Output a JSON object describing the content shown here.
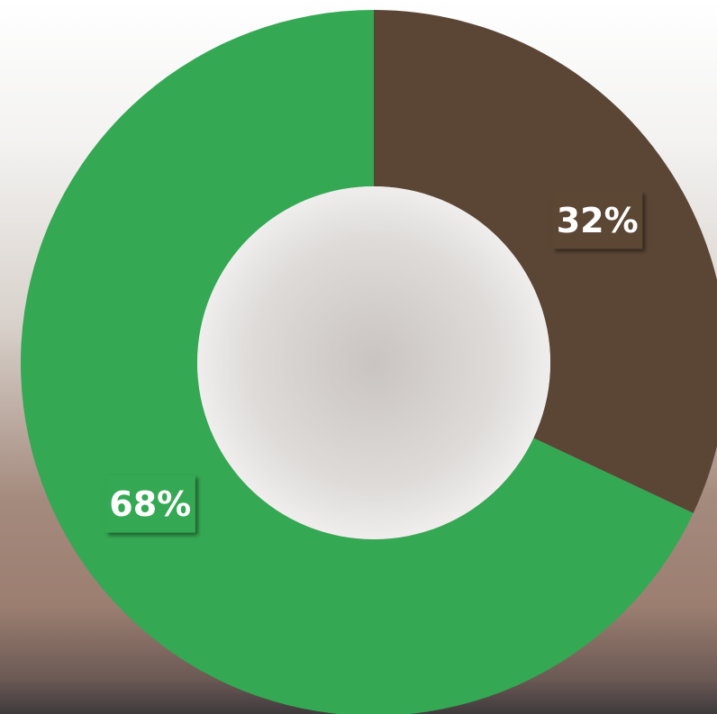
{
  "chart_data": {
    "type": "donut",
    "values": [
      32,
      68
    ],
    "value_labels": [
      "32%",
      "68%"
    ],
    "colors": [
      "#5b4636",
      "#34a853"
    ]
  }
}
